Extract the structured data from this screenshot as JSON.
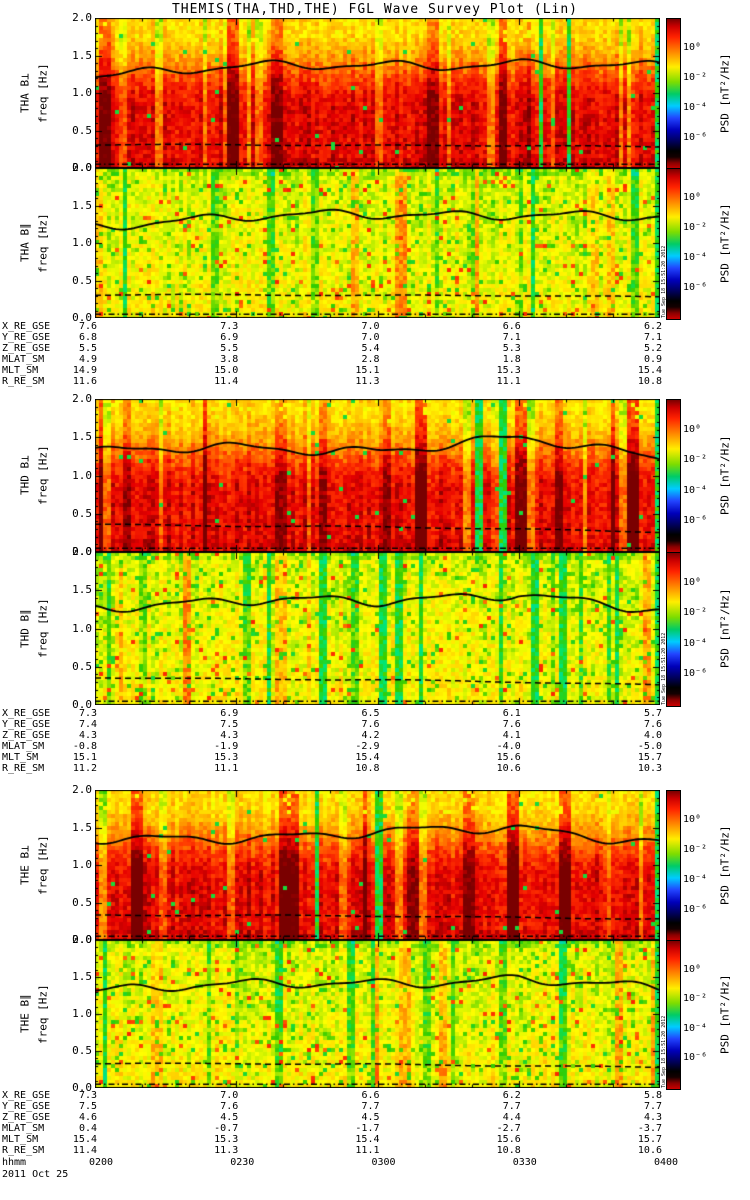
{
  "title": "THEMIS(THA,THD,THE) FGL Wave Survey Plot (Lin)",
  "axes": {
    "freq_label": "freq [Hz]",
    "freq_ticks": [
      "2.0",
      "1.5",
      "1.0",
      "0.5",
      "0.0"
    ],
    "freq_range": [
      0,
      2
    ],
    "time_label": "hhmm",
    "time_ticks": [
      "0200",
      "0230",
      "0300",
      "0330",
      "0400"
    ],
    "date": "2011 Oct 25"
  },
  "colorbar": {
    "label": "PSD [nT²/Hz]",
    "ticks": [
      "10⁰",
      "10⁻²",
      "10⁻⁴",
      "10⁻⁶"
    ],
    "scale": "log"
  },
  "sidestamp": "Tue Sep 18 15:51:20 2012",
  "chart_data": [
    {
      "type": "heatmap",
      "id": "tha_perp",
      "probe": "THA",
      "panel_label": "THA B⊥",
      "x_ticks": [
        "0200",
        "0230",
        "0300",
        "0330",
        "0400"
      ],
      "y_label": "freq [Hz]",
      "y_range": [
        0,
        2
      ],
      "color_label": "PSD [nT²/Hz]",
      "color_scale": "log",
      "color_ticks": [
        "1e0",
        "1e-2",
        "1e-4",
        "1e-6"
      ],
      "character": "broadband high PSD (red/dark red) over 0-2 Hz, yellow band near 2 Hz, vertical burst striations",
      "overlays": {
        "solid_freq_hz": [
          1.25,
          1.33,
          1.38,
          1.4,
          1.33
        ],
        "dashed_freq_hz": [
          0.31,
          0.31,
          0.3,
          0.3,
          0.28
        ],
        "dashdot_freq_hz": [
          0.05,
          0.05,
          0.05,
          0.05,
          0.05
        ]
      }
    },
    {
      "type": "heatmap",
      "id": "tha_par",
      "probe": "THA",
      "panel_label": "THA B∥",
      "x_ticks": [
        "0200",
        "0230",
        "0300",
        "0330",
        "0400"
      ],
      "y_label": "freq [Hz]",
      "y_range": [
        0,
        2
      ],
      "color_label": "PSD [nT²/Hz]",
      "color_scale": "log",
      "color_ticks": [
        "1e0",
        "1e-2",
        "1e-4",
        "1e-6"
      ],
      "character": "moderate PSD (yellow/green) with red vertical burst striations and green low-PSD patches",
      "overlays": {
        "solid_freq_hz": [
          1.25,
          1.33,
          1.38,
          1.4,
          1.33
        ],
        "dashed_freq_hz": [
          0.31,
          0.31,
          0.3,
          0.3,
          0.28
        ],
        "dashdot_freq_hz": [
          0.05,
          0.05,
          0.05,
          0.05,
          0.05
        ]
      }
    },
    {
      "type": "heatmap",
      "id": "thd_perp",
      "probe": "THD",
      "panel_label": "THD B⊥",
      "x_ticks": [
        "0200",
        "0230",
        "0300",
        "0330",
        "0400"
      ],
      "y_label": "freq [Hz]",
      "y_range": [
        0,
        2
      ],
      "color_label": "PSD [nT²/Hz]",
      "color_scale": "log",
      "color_ticks": [
        "1e0",
        "1e-2",
        "1e-4",
        "1e-6"
      ],
      "character": "broadband red/dark red PSD with strong vertical striations and green/cyan low-PSD columns near right edge",
      "overlays": {
        "solid_freq_hz": [
          1.3,
          1.36,
          1.34,
          1.48,
          1.22
        ],
        "dashed_freq_hz": [
          0.36,
          0.34,
          0.33,
          0.3,
          0.26
        ],
        "dashdot_freq_hz": [
          0.05,
          0.05,
          0.05,
          0.05,
          0.05
        ]
      }
    },
    {
      "type": "heatmap",
      "id": "thd_par",
      "probe": "THD",
      "panel_label": "THD B∥",
      "x_ticks": [
        "0200",
        "0230",
        "0300",
        "0330",
        "0400"
      ],
      "y_label": "freq [Hz]",
      "y_range": [
        0,
        2
      ],
      "color_label": "PSD [nT²/Hz]",
      "color_scale": "log",
      "color_ticks": [
        "1e0",
        "1e-2",
        "1e-4",
        "1e-6"
      ],
      "character": "yellow/orange PSD with red burst striations and cyan/green columns near right edge",
      "overlays": {
        "solid_freq_hz": [
          1.3,
          1.36,
          1.34,
          1.48,
          1.22
        ],
        "dashed_freq_hz": [
          0.36,
          0.34,
          0.33,
          0.3,
          0.26
        ],
        "dashdot_freq_hz": [
          0.05,
          0.05,
          0.05,
          0.05,
          0.05
        ]
      }
    },
    {
      "type": "heatmap",
      "id": "the_perp",
      "probe": "THE",
      "panel_label": "THE B⊥",
      "x_ticks": [
        "0200",
        "0230",
        "0300",
        "0330",
        "0400"
      ],
      "y_label": "freq [Hz]",
      "y_range": [
        0,
        2
      ],
      "color_label": "PSD [nT²/Hz]",
      "color_scale": "log",
      "color_ticks": [
        "1e0",
        "1e-2",
        "1e-4",
        "1e-6"
      ],
      "character": "broadband red/orange PSD, yellow band near 2 Hz, dark red band below 0.5 Hz, vertical striations",
      "overlays": {
        "solid_freq_hz": [
          1.33,
          1.38,
          1.43,
          1.48,
          1.32
        ],
        "dashed_freq_hz": [
          0.33,
          0.33,
          0.32,
          0.3,
          0.28
        ],
        "dashdot_freq_hz": [
          0.05,
          0.05,
          0.05,
          0.05,
          0.05
        ]
      }
    },
    {
      "type": "heatmap",
      "id": "the_par",
      "probe": "THE",
      "panel_label": "THE B∥",
      "x_ticks": [
        "0200",
        "0230",
        "0300",
        "0330",
        "0400"
      ],
      "y_label": "freq [Hz]",
      "y_range": [
        0,
        2
      ],
      "color_label": "PSD [nT²/Hz]",
      "color_scale": "log",
      "color_ticks": [
        "1e0",
        "1e-2",
        "1e-4",
        "1e-6"
      ],
      "character": "yellow/green PSD with red vertical burst striations and green patches, greener near right edge",
      "overlays": {
        "solid_freq_hz": [
          1.33,
          1.38,
          1.43,
          1.48,
          1.32
        ],
        "dashed_freq_hz": [
          0.33,
          0.33,
          0.32,
          0.3,
          0.28
        ],
        "dashdot_freq_hz": [
          0.05,
          0.05,
          0.05,
          0.05,
          0.05
        ]
      }
    },
    {
      "type": "table",
      "id": "tha_ephemeris",
      "probe": "THA",
      "columns": [
        "0200",
        "0230",
        "0300",
        "0330",
        "0400"
      ],
      "row_headers": [
        "X_RE_GSE",
        "Y_RE_GSE",
        "Z_RE_GSE",
        "MLAT_SM",
        "MLT_SM",
        "R_RE_SM"
      ],
      "rows": [
        [
          "7.6",
          "7.3",
          "7.0",
          "6.6",
          "6.2"
        ],
        [
          "6.8",
          "6.9",
          "7.0",
          "7.1",
          "7.1"
        ],
        [
          "5.5",
          "5.5",
          "5.4",
          "5.3",
          "5.2"
        ],
        [
          "4.9",
          "3.8",
          "2.8",
          "1.8",
          "0.9"
        ],
        [
          "14.9",
          "15.0",
          "15.1",
          "15.3",
          "15.4"
        ],
        [
          "11.6",
          "11.4",
          "11.3",
          "11.1",
          "10.8"
        ]
      ]
    },
    {
      "type": "table",
      "id": "thd_ephemeris",
      "probe": "THD",
      "columns": [
        "0200",
        "0230",
        "0300",
        "0330",
        "0400"
      ],
      "row_headers": [
        "X_RE_GSE",
        "Y_RE_GSE",
        "Z_RE_GSE",
        "MLAT_SM",
        "MLT_SM",
        "R_RE_SM"
      ],
      "rows": [
        [
          "7.3",
          "6.9",
          "6.5",
          "6.1",
          "5.7"
        ],
        [
          "7.4",
          "7.5",
          "7.6",
          "7.6",
          "7.6"
        ],
        [
          "4.3",
          "4.3",
          "4.2",
          "4.1",
          "4.0"
        ],
        [
          "-0.8",
          "-1.9",
          "-2.9",
          "-4.0",
          "-5.0"
        ],
        [
          "15.1",
          "15.3",
          "15.4",
          "15.6",
          "15.7"
        ],
        [
          "11.2",
          "11.1",
          "10.8",
          "10.6",
          "10.3"
        ]
      ]
    },
    {
      "type": "table",
      "id": "the_ephemeris",
      "probe": "THE",
      "columns": [
        "0200",
        "0230",
        "0300",
        "0330",
        "0400"
      ],
      "row_headers": [
        "X_RE_GSE",
        "Y_RE_GSE",
        "Z_RE_GSE",
        "MLAT_SM",
        "MLT_SM",
        "R_RE_SM"
      ],
      "rows": [
        [
          "7.3",
          "7.0",
          "6.6",
          "6.2",
          "5.8"
        ],
        [
          "7.5",
          "7.6",
          "7.7",
          "7.7",
          "7.7"
        ],
        [
          "4.6",
          "4.5",
          "4.5",
          "4.4",
          "4.3"
        ],
        [
          "0.4",
          "-0.7",
          "-1.7",
          "-2.7",
          "-3.7"
        ],
        [
          "15.4",
          "15.3",
          "15.4",
          "15.6",
          "15.7"
        ],
        [
          "11.4",
          "11.3",
          "11.1",
          "10.8",
          "10.6"
        ]
      ]
    }
  ]
}
